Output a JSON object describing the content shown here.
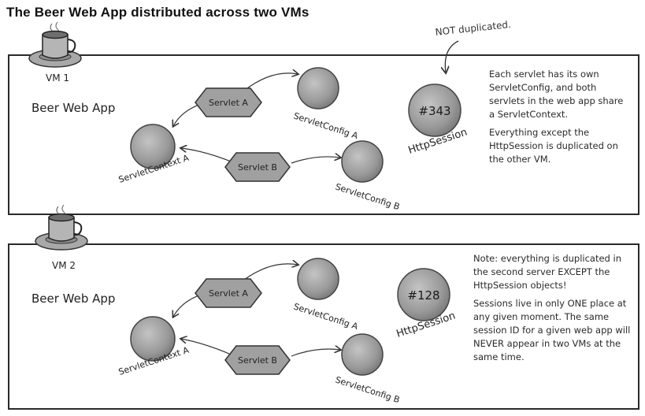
{
  "title": "The Beer Web App distributed across two VMs",
  "callout": "NOT duplicated.",
  "vm1": {
    "vm_label": "VM 1",
    "app_label": "Beer Web App",
    "servlet_a": "Servlet A",
    "servlet_b": "Servlet B",
    "config_a": "ServletConfig A",
    "config_b": "ServletConfig B",
    "context": "ServletContext A",
    "session_id": "#343",
    "session_label": "HttpSession",
    "note": [
      "Each servlet has its own ServletConfig, and both servlets in the web app share a ServletContext.",
      "Everything except the HttpSession is duplicated on the other VM."
    ]
  },
  "vm2": {
    "vm_label": "VM 2",
    "app_label": "Beer Web App",
    "servlet_a": "Servlet A",
    "servlet_b": "Servlet B",
    "config_a": "ServletConfig A",
    "config_b": "ServletConfig B",
    "context": "ServletContext A",
    "session_id": "#128",
    "session_label": "HttpSession",
    "note": [
      "Note: everything is duplicated in the second server EXCEPT the HttpSession objects!",
      "Sessions live in only ONE place at any given moment. The same session ID for a given web app will NEVER appear in two VMs at the same time."
    ]
  },
  "icons": [
    "coffee-cup-icon",
    "arrow-icon"
  ],
  "colors": {
    "node_fill": "#9a9a9a",
    "node_stroke": "#4a4a4a",
    "panel_border": "#2a2a2a"
  }
}
